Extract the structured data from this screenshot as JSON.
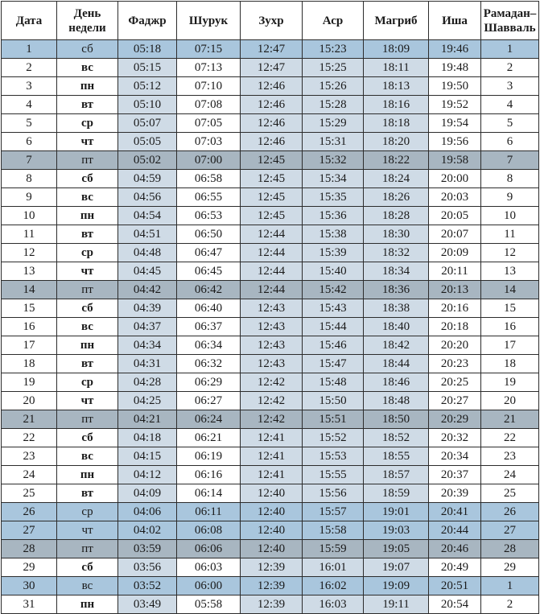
{
  "headers": {
    "date": "Дата",
    "day_line1": "День",
    "day_line2": "недели",
    "fajr": "Фаджр",
    "shuruq": "Шурук",
    "zuhr": "Зухр",
    "asr": "Аср",
    "maghrib": "Магриб",
    "isha": "Иша",
    "ramadan_line1": "Рамадан–",
    "ramadan_line2": "Шавваль"
  },
  "colors": {
    "column_shade": "#cfdbe6",
    "friday_row": "#a8b6c1",
    "highlight_row": "#a9c6dd",
    "grid": "#2c2c2c"
  },
  "rows": [
    {
      "date": "1",
      "day": "сб",
      "fajr": "05:18",
      "shuruq": "07:15",
      "zuhr": "12:47",
      "asr": "15:23",
      "maghrib": "18:09",
      "isha": "19:46",
      "hijri": "1",
      "style": "hl"
    },
    {
      "date": "2",
      "day": "вс",
      "fajr": "05:15",
      "shuruq": "07:13",
      "zuhr": "12:47",
      "asr": "15:25",
      "maghrib": "18:11",
      "isha": "19:48",
      "hijri": "2",
      "style": ""
    },
    {
      "date": "3",
      "day": "пн",
      "fajr": "05:12",
      "shuruq": "07:10",
      "zuhr": "12:46",
      "asr": "15:26",
      "maghrib": "18:13",
      "isha": "19:50",
      "hijri": "3",
      "style": ""
    },
    {
      "date": "4",
      "day": "вт",
      "fajr": "05:10",
      "shuruq": "07:08",
      "zuhr": "12:46",
      "asr": "15:28",
      "maghrib": "18:16",
      "isha": "19:52",
      "hijri": "4",
      "style": ""
    },
    {
      "date": "5",
      "day": "ср",
      "fajr": "05:07",
      "shuruq": "07:05",
      "zuhr": "12:46",
      "asr": "15:29",
      "maghrib": "18:18",
      "isha": "19:54",
      "hijri": "5",
      "style": ""
    },
    {
      "date": "6",
      "day": "чт",
      "fajr": "05:05",
      "shuruq": "07:03",
      "zuhr": "12:46",
      "asr": "15:31",
      "maghrib": "18:20",
      "isha": "19:56",
      "hijri": "6",
      "style": ""
    },
    {
      "date": "7",
      "day": "пт",
      "fajr": "05:02",
      "shuruq": "07:00",
      "zuhr": "12:45",
      "asr": "15:32",
      "maghrib": "18:22",
      "isha": "19:58",
      "hijri": "7",
      "style": "fri"
    },
    {
      "date": "8",
      "day": "сб",
      "fajr": "04:59",
      "shuruq": "06:58",
      "zuhr": "12:45",
      "asr": "15:34",
      "maghrib": "18:24",
      "isha": "20:00",
      "hijri": "8",
      "style": ""
    },
    {
      "date": "9",
      "day": "вс",
      "fajr": "04:56",
      "shuruq": "06:55",
      "zuhr": "12:45",
      "asr": "15:35",
      "maghrib": "18:26",
      "isha": "20:03",
      "hijri": "9",
      "style": ""
    },
    {
      "date": "10",
      "day": "пн",
      "fajr": "04:54",
      "shuruq": "06:53",
      "zuhr": "12:45",
      "asr": "15:36",
      "maghrib": "18:28",
      "isha": "20:05",
      "hijri": "10",
      "style": ""
    },
    {
      "date": "11",
      "day": "вт",
      "fajr": "04:51",
      "shuruq": "06:50",
      "zuhr": "12:44",
      "asr": "15:38",
      "maghrib": "18:30",
      "isha": "20:07",
      "hijri": "11",
      "style": ""
    },
    {
      "date": "12",
      "day": "ср",
      "fajr": "04:48",
      "shuruq": "06:47",
      "zuhr": "12:44",
      "asr": "15:39",
      "maghrib": "18:32",
      "isha": "20:09",
      "hijri": "12",
      "style": ""
    },
    {
      "date": "13",
      "day": "чт",
      "fajr": "04:45",
      "shuruq": "06:45",
      "zuhr": "12:44",
      "asr": "15:40",
      "maghrib": "18:34",
      "isha": "20:11",
      "hijri": "13",
      "style": ""
    },
    {
      "date": "14",
      "day": "пт",
      "fajr": "04:42",
      "shuruq": "06:42",
      "zuhr": "12:44",
      "asr": "15:42",
      "maghrib": "18:36",
      "isha": "20:13",
      "hijri": "14",
      "style": "fri"
    },
    {
      "date": "15",
      "day": "сб",
      "fajr": "04:39",
      "shuruq": "06:40",
      "zuhr": "12:43",
      "asr": "15:43",
      "maghrib": "18:38",
      "isha": "20:16",
      "hijri": "15",
      "style": ""
    },
    {
      "date": "16",
      "day": "вс",
      "fajr": "04:37",
      "shuruq": "06:37",
      "zuhr": "12:43",
      "asr": "15:44",
      "maghrib": "18:40",
      "isha": "20:18",
      "hijri": "16",
      "style": ""
    },
    {
      "date": "17",
      "day": "пн",
      "fajr": "04:34",
      "shuruq": "06:34",
      "zuhr": "12:43",
      "asr": "15:46",
      "maghrib": "18:42",
      "isha": "20:20",
      "hijri": "17",
      "style": ""
    },
    {
      "date": "18",
      "day": "вт",
      "fajr": "04:31",
      "shuruq": "06:32",
      "zuhr": "12:43",
      "asr": "15:47",
      "maghrib": "18:44",
      "isha": "20:23",
      "hijri": "18",
      "style": ""
    },
    {
      "date": "19",
      "day": "ср",
      "fajr": "04:28",
      "shuruq": "06:29",
      "zuhr": "12:42",
      "asr": "15:48",
      "maghrib": "18:46",
      "isha": "20:25",
      "hijri": "19",
      "style": ""
    },
    {
      "date": "20",
      "day": "чт",
      "fajr": "04:25",
      "shuruq": "06:27",
      "zuhr": "12:42",
      "asr": "15:50",
      "maghrib": "18:48",
      "isha": "20:27",
      "hijri": "20",
      "style": ""
    },
    {
      "date": "21",
      "day": "пт",
      "fajr": "04:21",
      "shuruq": "06:24",
      "zuhr": "12:42",
      "asr": "15:51",
      "maghrib": "18:50",
      "isha": "20:29",
      "hijri": "21",
      "style": "fri"
    },
    {
      "date": "22",
      "day": "сб",
      "fajr": "04:18",
      "shuruq": "06:21",
      "zuhr": "12:41",
      "asr": "15:52",
      "maghrib": "18:52",
      "isha": "20:32",
      "hijri": "22",
      "style": ""
    },
    {
      "date": "23",
      "day": "вс",
      "fajr": "04:15",
      "shuruq": "06:19",
      "zuhr": "12:41",
      "asr": "15:53",
      "maghrib": "18:55",
      "isha": "20:34",
      "hijri": "23",
      "style": ""
    },
    {
      "date": "24",
      "day": "пн",
      "fajr": "04:12",
      "shuruq": "06:16",
      "zuhr": "12:41",
      "asr": "15:55",
      "maghrib": "18:57",
      "isha": "20:37",
      "hijri": "24",
      "style": ""
    },
    {
      "date": "25",
      "day": "вт",
      "fajr": "04:09",
      "shuruq": "06:14",
      "zuhr": "12:40",
      "asr": "15:56",
      "maghrib": "18:59",
      "isha": "20:39",
      "hijri": "25",
      "style": ""
    },
    {
      "date": "26",
      "day": "ср",
      "fajr": "04:06",
      "shuruq": "06:11",
      "zuhr": "12:40",
      "asr": "15:57",
      "maghrib": "19:01",
      "isha": "20:41",
      "hijri": "26",
      "style": "hl"
    },
    {
      "date": "27",
      "day": "чт",
      "fajr": "04:02",
      "shuruq": "06:08",
      "zuhr": "12:40",
      "asr": "15:58",
      "maghrib": "19:03",
      "isha": "20:44",
      "hijri": "27",
      "style": "hl"
    },
    {
      "date": "28",
      "day": "пт",
      "fajr": "03:59",
      "shuruq": "06:06",
      "zuhr": "12:40",
      "asr": "15:59",
      "maghrib": "19:05",
      "isha": "20:46",
      "hijri": "28",
      "style": "fri"
    },
    {
      "date": "29",
      "day": "сб",
      "fajr": "03:56",
      "shuruq": "06:03",
      "zuhr": "12:39",
      "asr": "16:01",
      "maghrib": "19:07",
      "isha": "20:49",
      "hijri": "29",
      "style": ""
    },
    {
      "date": "30",
      "day": "вс",
      "fajr": "03:52",
      "shuruq": "06:00",
      "zuhr": "12:39",
      "asr": "16:02",
      "maghrib": "19:09",
      "isha": "20:51",
      "hijri": "1",
      "style": "hl"
    },
    {
      "date": "31",
      "day": "пн",
      "fajr": "03:49",
      "shuruq": "05:58",
      "zuhr": "12:39",
      "asr": "16:03",
      "maghrib": "19:11",
      "isha": "20:54",
      "hijri": "2",
      "style": ""
    }
  ]
}
